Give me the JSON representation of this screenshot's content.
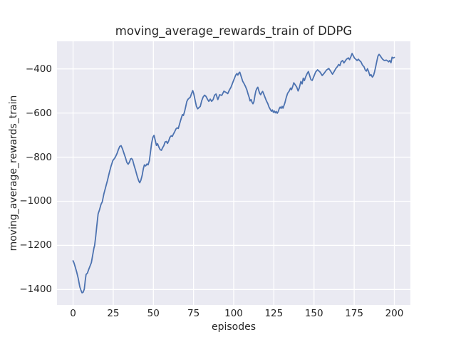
{
  "figure": {
    "title": "moving_average_rewards_train of DDPG",
    "xlabel": "episodes",
    "ylabel": "moving_average_rewards_train"
  },
  "colors": {
    "line": "#4C72B0",
    "axes_background": "#EAEAF2",
    "grid": "#FFFFFF",
    "text": "#262626",
    "figure_background": "#FFFFFF"
  },
  "chart_data": {
    "type": "line",
    "style": "seaborn-darkgrid",
    "title": "moving_average_rewards_train of DDPG",
    "xlabel": "episodes",
    "ylabel": "moving_average_rewards_train",
    "legend_position": "none",
    "grid": true,
    "xlim": [
      -10,
      210
    ],
    "ylim": [
      -1470,
      -275
    ],
    "x_ticks": [
      0,
      25,
      50,
      75,
      100,
      125,
      150,
      175,
      200
    ],
    "x_tick_labels": [
      "0",
      "25",
      "50",
      "75",
      "100",
      "125",
      "150",
      "175",
      "200"
    ],
    "y_ticks": [
      -400,
      -600,
      -800,
      -1000,
      -1200,
      -1400
    ],
    "y_tick_labels": [
      "−400",
      "−600",
      "−800",
      "−1000",
      "−1200",
      "−1400"
    ],
    "series": [
      {
        "name": "moving_average_rewards_train",
        "color": "#4C72B0",
        "line_width": 1.8,
        "points": [
          [
            0,
            -1270
          ],
          [
            0.6,
            -1280
          ],
          [
            1.4,
            -1299
          ],
          [
            2.3,
            -1322
          ],
          [
            3.2,
            -1349
          ],
          [
            4.2,
            -1388
          ],
          [
            5,
            -1405
          ],
          [
            5.6,
            -1415
          ],
          [
            6.3,
            -1412
          ],
          [
            7,
            -1398
          ],
          [
            7.6,
            -1358
          ],
          [
            8.1,
            -1332
          ],
          [
            8.9,
            -1326
          ],
          [
            9.8,
            -1308
          ],
          [
            10.6,
            -1293
          ],
          [
            11.4,
            -1278
          ],
          [
            12.2,
            -1245
          ],
          [
            13,
            -1212
          ],
          [
            13.4,
            -1201
          ],
          [
            14.1,
            -1160
          ],
          [
            14.8,
            -1110
          ],
          [
            15.6,
            -1057
          ],
          [
            16.4,
            -1040
          ],
          [
            17.4,
            -1014
          ],
          [
            18.2,
            -1002
          ],
          [
            19.2,
            -966
          ],
          [
            20.4,
            -933
          ],
          [
            21.4,
            -906
          ],
          [
            22.6,
            -869
          ],
          [
            23.6,
            -842
          ],
          [
            24.8,
            -815
          ],
          [
            25.9,
            -805
          ],
          [
            26.7,
            -794
          ],
          [
            27.4,
            -783
          ],
          [
            28.2,
            -766
          ],
          [
            29.1,
            -751
          ],
          [
            29.9,
            -748
          ],
          [
            30.8,
            -763
          ],
          [
            31.8,
            -785
          ],
          [
            32.6,
            -802
          ],
          [
            33.5,
            -824
          ],
          [
            34.3,
            -832
          ],
          [
            35.1,
            -823
          ],
          [
            35.8,
            -808
          ],
          [
            36.4,
            -806
          ],
          [
            37.1,
            -813
          ],
          [
            38,
            -838
          ],
          [
            38.9,
            -859
          ],
          [
            39.9,
            -886
          ],
          [
            40.9,
            -908
          ],
          [
            41.5,
            -916
          ],
          [
            42.2,
            -905
          ],
          [
            43,
            -883
          ],
          [
            43.8,
            -851
          ],
          [
            44.4,
            -835
          ],
          [
            45.2,
            -840
          ],
          [
            46,
            -831
          ],
          [
            46.7,
            -835
          ],
          [
            47.5,
            -816
          ],
          [
            48.2,
            -777
          ],
          [
            48.9,
            -737
          ],
          [
            49.7,
            -710
          ],
          [
            50.4,
            -701
          ],
          [
            51.1,
            -722
          ],
          [
            51.9,
            -747
          ],
          [
            52.6,
            -739
          ],
          [
            53.4,
            -754
          ],
          [
            54.2,
            -766
          ],
          [
            55,
            -769
          ],
          [
            55.7,
            -758
          ],
          [
            56.5,
            -748
          ],
          [
            57.3,
            -731
          ],
          [
            58.1,
            -729
          ],
          [
            58.8,
            -738
          ],
          [
            59.6,
            -725
          ],
          [
            60.3,
            -710
          ],
          [
            61.1,
            -703
          ],
          [
            61.8,
            -706
          ],
          [
            62.5,
            -695
          ],
          [
            63.3,
            -684
          ],
          [
            64.1,
            -672
          ],
          [
            64.8,
            -667
          ],
          [
            65.5,
            -670
          ],
          [
            66.1,
            -655
          ],
          [
            66.8,
            -637
          ],
          [
            67.5,
            -620
          ],
          [
            68.1,
            -607
          ],
          [
            68.7,
            -611
          ],
          [
            69.4,
            -594
          ],
          [
            70.1,
            -572
          ],
          [
            70.8,
            -548
          ],
          [
            71.5,
            -538
          ],
          [
            72.2,
            -533
          ],
          [
            73,
            -528
          ],
          [
            73.7,
            -513
          ],
          [
            74.5,
            -498
          ],
          [
            75.2,
            -515
          ],
          [
            76,
            -543
          ],
          [
            76.8,
            -570
          ],
          [
            77.6,
            -581
          ],
          [
            78.4,
            -575
          ],
          [
            79.2,
            -570
          ],
          [
            80.1,
            -544
          ],
          [
            81,
            -527
          ],
          [
            81.9,
            -519
          ],
          [
            82.8,
            -525
          ],
          [
            83.7,
            -538
          ],
          [
            84.5,
            -547
          ],
          [
            85.4,
            -537
          ],
          [
            86.3,
            -547
          ],
          [
            87.2,
            -539
          ],
          [
            88.1,
            -519
          ],
          [
            89,
            -514
          ],
          [
            90.1,
            -539
          ],
          [
            91.3,
            -517
          ],
          [
            92.6,
            -520
          ],
          [
            93.9,
            -501
          ],
          [
            95.1,
            -506
          ],
          [
            96.3,
            -512
          ],
          [
            97.3,
            -496
          ],
          [
            98.3,
            -483
          ],
          [
            99.1,
            -468
          ],
          [
            99.9,
            -453
          ],
          [
            100.5,
            -442
          ],
          [
            101.2,
            -429
          ],
          [
            102,
            -421
          ],
          [
            102.6,
            -428
          ],
          [
            103.2,
            -419
          ],
          [
            103.8,
            -415
          ],
          [
            104.6,
            -433
          ],
          [
            105.6,
            -456
          ],
          [
            106.4,
            -466
          ],
          [
            107.3,
            -479
          ],
          [
            108.2,
            -495
          ],
          [
            108.9,
            -513
          ],
          [
            109.7,
            -531
          ],
          [
            110.2,
            -545
          ],
          [
            110.8,
            -539
          ],
          [
            111.4,
            -551
          ],
          [
            112,
            -558
          ],
          [
            112.6,
            -548
          ],
          [
            113.2,
            -521
          ],
          [
            113.8,
            -500
          ],
          [
            114.4,
            -489
          ],
          [
            115,
            -483
          ],
          [
            115.6,
            -498
          ],
          [
            116.2,
            -511
          ],
          [
            116.8,
            -517
          ],
          [
            117.4,
            -508
          ],
          [
            118,
            -502
          ],
          [
            118.6,
            -512
          ],
          [
            119.4,
            -527
          ],
          [
            120.3,
            -544
          ],
          [
            121.2,
            -557
          ],
          [
            122,
            -573
          ],
          [
            122.9,
            -585
          ],
          [
            123.5,
            -592
          ],
          [
            124.1,
            -586
          ],
          [
            124.7,
            -597
          ],
          [
            125.3,
            -591
          ],
          [
            125.9,
            -599
          ],
          [
            126.5,
            -593
          ],
          [
            127.1,
            -601
          ],
          [
            127.7,
            -594
          ],
          [
            128.3,
            -581
          ],
          [
            128.9,
            -573
          ],
          [
            129.5,
            -579
          ],
          [
            130.1,
            -570
          ],
          [
            130.7,
            -578
          ],
          [
            131.3,
            -566
          ],
          [
            131.9,
            -553
          ],
          [
            132.7,
            -530
          ],
          [
            133.6,
            -510
          ],
          [
            134.5,
            -501
          ],
          [
            135.4,
            -487
          ],
          [
            136,
            -494
          ],
          [
            136.8,
            -478
          ],
          [
            137.4,
            -463
          ],
          [
            138.1,
            -470
          ],
          [
            139.2,
            -482
          ],
          [
            140.1,
            -500
          ],
          [
            140.8,
            -487
          ],
          [
            141.8,
            -457
          ],
          [
            142.6,
            -468
          ],
          [
            143.3,
            -442
          ],
          [
            144,
            -453
          ],
          [
            144.8,
            -436
          ],
          [
            145.8,
            -420
          ],
          [
            146.5,
            -412
          ],
          [
            147.3,
            -431
          ],
          [
            148.1,
            -449
          ],
          [
            148.9,
            -452
          ],
          [
            149.8,
            -436
          ],
          [
            151,
            -414
          ],
          [
            152.2,
            -404
          ],
          [
            153.7,
            -414
          ],
          [
            155.1,
            -430
          ],
          [
            156.3,
            -420
          ],
          [
            157.8,
            -405
          ],
          [
            159.2,
            -398
          ],
          [
            160.3,
            -410
          ],
          [
            161.5,
            -424
          ],
          [
            162.5,
            -412
          ],
          [
            163.5,
            -399
          ],
          [
            164.6,
            -389
          ],
          [
            165.3,
            -380
          ],
          [
            166.1,
            -385
          ],
          [
            166.9,
            -367
          ],
          [
            167.8,
            -362
          ],
          [
            168.6,
            -373
          ],
          [
            169.3,
            -366
          ],
          [
            170.2,
            -356
          ],
          [
            171.4,
            -350
          ],
          [
            172.1,
            -358
          ],
          [
            173,
            -344
          ],
          [
            173.7,
            -330
          ],
          [
            174.5,
            -341
          ],
          [
            175.2,
            -351
          ],
          [
            176.1,
            -357
          ],
          [
            176.8,
            -362
          ],
          [
            177.6,
            -356
          ],
          [
            178.3,
            -362
          ],
          [
            179.2,
            -368
          ],
          [
            180.2,
            -383
          ],
          [
            181.1,
            -390
          ],
          [
            181.9,
            -405
          ],
          [
            182.6,
            -410
          ],
          [
            183.3,
            -399
          ],
          [
            184.1,
            -415
          ],
          [
            184.8,
            -431
          ],
          [
            185.5,
            -426
          ],
          [
            186.3,
            -437
          ],
          [
            187,
            -431
          ],
          [
            187.7,
            -413
          ],
          [
            188.4,
            -390
          ],
          [
            189.1,
            -365
          ],
          [
            189.8,
            -342
          ],
          [
            190.5,
            -334
          ],
          [
            191.2,
            -340
          ],
          [
            191.9,
            -348
          ],
          [
            192.7,
            -356
          ],
          [
            193.5,
            -361
          ],
          [
            194.2,
            -362
          ],
          [
            194.9,
            -360
          ],
          [
            195.7,
            -363
          ],
          [
            196.4,
            -368
          ],
          [
            197.1,
            -362
          ],
          [
            197.9,
            -372
          ],
          [
            198.6,
            -347
          ],
          [
            199.3,
            -351
          ],
          [
            200,
            -348
          ]
        ]
      }
    ]
  }
}
